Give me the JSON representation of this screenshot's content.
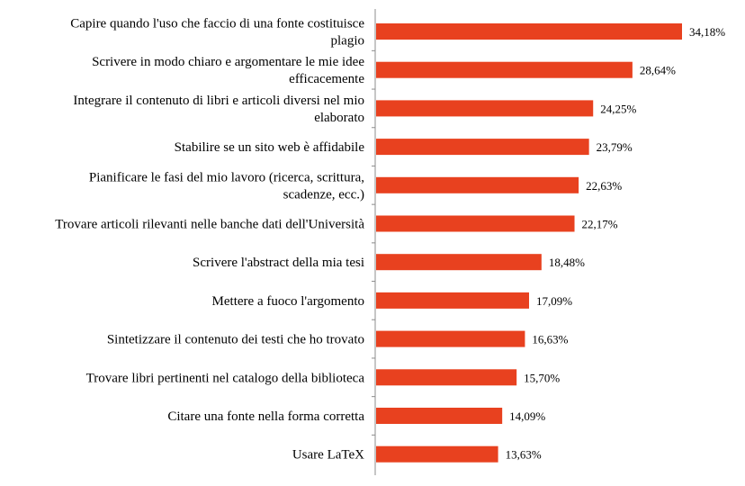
{
  "chart_data": {
    "type": "bar",
    "orientation": "horizontal",
    "title": "",
    "xlabel": "",
    "ylabel": "",
    "categories": [
      [
        "Capire quando l'uso che faccio di una fonte costituisce",
        "plagio"
      ],
      [
        "Scrivere in modo chiaro e argomentare le mie idee",
        "efficacemente"
      ],
      [
        "Integrare il contenuto di libri e articoli diversi nel mio",
        "elaborato"
      ],
      [
        "Stabilire se un sito web è affidabile"
      ],
      [
        "Pianificare le fasi del mio lavoro (ricerca, scrittura,",
        "scadenze, ecc.)"
      ],
      [
        "Trovare articoli rilevanti nelle banche dati dell'Università"
      ],
      [
        "Scrivere l'abstract della mia tesi"
      ],
      [
        "Mettere a fuoco l'argomento"
      ],
      [
        "Sintetizzare il contenuto dei testi che ho trovato"
      ],
      [
        "Trovare libri pertinenti nel catalogo della biblioteca"
      ],
      [
        "Citare una fonte nella forma corretta"
      ],
      [
        "Usare LaTeX"
      ]
    ],
    "values": [
      34.18,
      28.64,
      24.25,
      23.79,
      22.63,
      22.17,
      18.48,
      17.09,
      16.63,
      15.7,
      14.09,
      13.63
    ],
    "value_labels": [
      "34,18%",
      "28,64%",
      "24,25%",
      "23,79%",
      "22,63%",
      "22,17%",
      "18,48%",
      "17,09%",
      "16,63%",
      "15,70%",
      "14,09%",
      "13,63%"
    ],
    "xlim": [
      0,
      35
    ],
    "bar_color": "#e8411f",
    "axis_color": "#8c8c8c",
    "grid": false,
    "legend": false
  }
}
